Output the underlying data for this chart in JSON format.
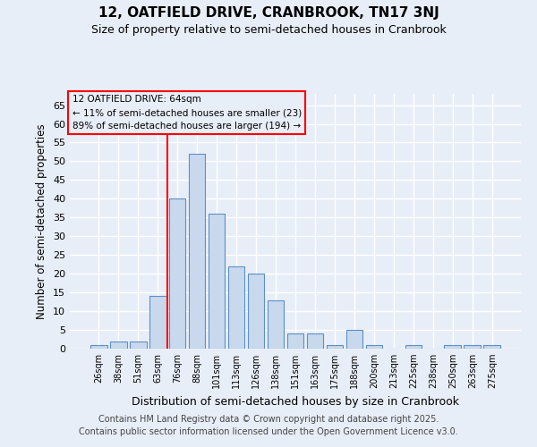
{
  "title1": "12, OATFIELD DRIVE, CRANBROOK, TN17 3NJ",
  "title2": "Size of property relative to semi-detached houses in Cranbrook",
  "xlabel": "Distribution of semi-detached houses by size in Cranbrook",
  "ylabel": "Number of semi-detached properties",
  "categories": [
    "26sqm",
    "38sqm",
    "51sqm",
    "63sqm",
    "76sqm",
    "88sqm",
    "101sqm",
    "113sqm",
    "126sqm",
    "138sqm",
    "151sqm",
    "163sqm",
    "175sqm",
    "188sqm",
    "200sqm",
    "213sqm",
    "225sqm",
    "238sqm",
    "250sqm",
    "263sqm",
    "275sqm"
  ],
  "values": [
    1,
    2,
    2,
    14,
    40,
    52,
    36,
    22,
    20,
    13,
    4,
    4,
    1,
    5,
    1,
    0,
    1,
    0,
    1,
    1,
    1
  ],
  "bar_color": "#c8d9ee",
  "bar_edge_color": "#5b8fc9",
  "ylim": [
    0,
    68
  ],
  "yticks": [
    0,
    5,
    10,
    15,
    20,
    25,
    30,
    35,
    40,
    45,
    50,
    55,
    60,
    65
  ],
  "red_line_x": 3.5,
  "annotation_title": "12 OATFIELD DRIVE: 64sqm",
  "annotation_line1": "← 11% of semi-detached houses are smaller (23)",
  "annotation_line2": "89% of semi-detached houses are larger (194) →",
  "footnote1": "Contains HM Land Registry data © Crown copyright and database right 2025.",
  "footnote2": "Contains public sector information licensed under the Open Government Licence v3.0.",
  "background_color": "#e8eef8"
}
